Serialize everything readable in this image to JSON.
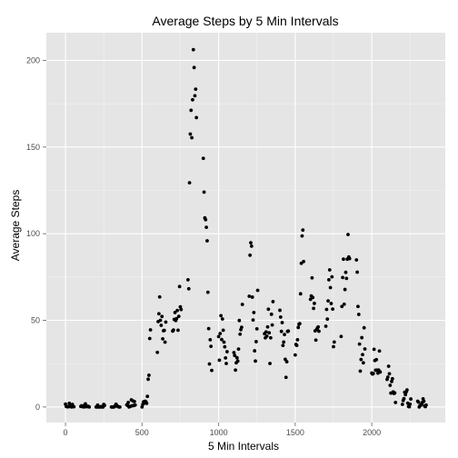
{
  "chart_data": {
    "type": "scatter",
    "title": "Average Steps by 5 Min Intervals",
    "xlabel": "5 Min Intervals",
    "ylabel": "Average Steps",
    "xlim": [
      -125,
      2480
    ],
    "ylim": [
      -9,
      216
    ],
    "xticks": [
      0,
      500,
      1000,
      1500,
      2000
    ],
    "yticks": [
      0,
      50,
      100,
      150,
      200
    ],
    "grid": true,
    "colors": {
      "panel": "#e5e5e5",
      "grid_major": "#ffffff",
      "grid_minor": "#f2f2f2",
      "point": "#000000"
    },
    "points": [
      [
        0,
        1.7
      ],
      [
        5,
        0.3
      ],
      [
        10,
        0.1
      ],
      [
        15,
        0.2
      ],
      [
        20,
        0.1
      ],
      [
        25,
        2.1
      ],
      [
        30,
        0.5
      ],
      [
        35,
        0.9
      ],
      [
        40,
        0
      ],
      [
        45,
        1.5
      ],
      [
        50,
        0.3
      ],
      [
        55,
        0.1
      ],
      [
        100,
        0.3
      ],
      [
        105,
        0.7
      ],
      [
        110,
        0.2
      ],
      [
        115,
        0.3
      ],
      [
        120,
        0
      ],
      [
        125,
        1.1
      ],
      [
        130,
        1.8
      ],
      [
        135,
        0.2
      ],
      [
        140,
        0.2
      ],
      [
        145,
        0.4
      ],
      [
        150,
        0.3
      ],
      [
        155,
        0
      ],
      [
        200,
        0
      ],
      [
        205,
        0
      ],
      [
        210,
        1.1
      ],
      [
        215,
        0
      ],
      [
        220,
        0
      ],
      [
        225,
        0.1
      ],
      [
        230,
        0
      ],
      [
        235,
        0.2
      ],
      [
        240,
        0
      ],
      [
        245,
        0
      ],
      [
        250,
        1.5
      ],
      [
        255,
        0.9
      ],
      [
        300,
        0
      ],
      [
        305,
        0
      ],
      [
        310,
        0
      ],
      [
        315,
        0
      ],
      [
        320,
        0.2
      ],
      [
        325,
        0.6
      ],
      [
        330,
        1.6
      ],
      [
        335,
        0.6
      ],
      [
        340,
        0.5
      ],
      [
        345,
        0.1
      ],
      [
        350,
        0
      ],
      [
        355,
        0
      ],
      [
        400,
        1.2
      ],
      [
        405,
        0.9
      ],
      [
        410,
        2.6
      ],
      [
        415,
        0
      ],
      [
        420,
        0.3
      ],
      [
        425,
        0.4
      ],
      [
        430,
        4.1
      ],
      [
        435,
        0.7
      ],
      [
        440,
        3.5
      ],
      [
        445,
        0.8
      ],
      [
        450,
        3.1
      ],
      [
        455,
        1.1
      ],
      [
        500,
        0
      ],
      [
        505,
        1.5
      ],
      [
        510,
        3
      ],
      [
        515,
        2.2
      ],
      [
        520,
        3.3
      ],
      [
        525,
        3
      ],
      [
        530,
        2.1
      ],
      [
        535,
        6.1
      ],
      [
        540,
        16
      ],
      [
        545,
        18.3
      ],
      [
        550,
        39.5
      ],
      [
        555,
        44.5
      ],
      [
        600,
        31.5
      ],
      [
        605,
        49.3
      ],
      [
        610,
        53.8
      ],
      [
        615,
        63.5
      ],
      [
        620,
        50
      ],
      [
        625,
        47.1
      ],
      [
        630,
        52.2
      ],
      [
        635,
        39.3
      ],
      [
        640,
        44
      ],
      [
        645,
        44.2
      ],
      [
        650,
        37.4
      ],
      [
        655,
        49
      ],
      [
        700,
        43.8
      ],
      [
        705,
        44.4
      ],
      [
        710,
        50.5
      ],
      [
        715,
        54.5
      ],
      [
        720,
        49.9
      ],
      [
        725,
        51
      ],
      [
        730,
        55.7
      ],
      [
        735,
        44.3
      ],
      [
        740,
        52.3
      ],
      [
        745,
        69.5
      ],
      [
        750,
        57.8
      ],
      [
        755,
        56.2
      ],
      [
        800,
        73.4
      ],
      [
        805,
        68.2
      ],
      [
        810,
        129.4
      ],
      [
        815,
        157.5
      ],
      [
        820,
        171.2
      ],
      [
        825,
        155.4
      ],
      [
        830,
        177.3
      ],
      [
        835,
        206.2
      ],
      [
        840,
        195.9
      ],
      [
        845,
        179.6
      ],
      [
        850,
        183.4
      ],
      [
        855,
        167
      ],
      [
        900,
        143.5
      ],
      [
        905,
        124
      ],
      [
        910,
        109.1
      ],
      [
        915,
        108.1
      ],
      [
        920,
        103.7
      ],
      [
        925,
        95.9
      ],
      [
        930,
        66.2
      ],
      [
        935,
        45.2
      ],
      [
        940,
        24.8
      ],
      [
        945,
        38.8
      ],
      [
        950,
        35
      ],
      [
        955,
        21.1
      ],
      [
        1000,
        40.6
      ],
      [
        1005,
        27
      ],
      [
        1010,
        42.4
      ],
      [
        1015,
        52.7
      ],
      [
        1020,
        38.9
      ],
      [
        1025,
        50.8
      ],
      [
        1030,
        44.3
      ],
      [
        1035,
        37.4
      ],
      [
        1040,
        34.7
      ],
      [
        1045,
        28.3
      ],
      [
        1050,
        25.1
      ],
      [
        1055,
        31.9
      ],
      [
        1100,
        31.4
      ],
      [
        1105,
        29.7
      ],
      [
        1110,
        21.3
      ],
      [
        1115,
        25.5
      ],
      [
        1120,
        28.4
      ],
      [
        1125,
        26.5
      ],
      [
        1130,
        33.4
      ],
      [
        1135,
        49.9
      ],
      [
        1140,
        42
      ],
      [
        1145,
        44.6
      ],
      [
        1150,
        46
      ],
      [
        1155,
        59.2
      ],
      [
        1200,
        63.9
      ],
      [
        1205,
        87.6
      ],
      [
        1210,
        94.8
      ],
      [
        1215,
        92.8
      ],
      [
        1220,
        63.4
      ],
      [
        1225,
        50.2
      ],
      [
        1230,
        54.5
      ],
      [
        1235,
        32.4
      ],
      [
        1240,
        26.5
      ],
      [
        1245,
        37.7
      ],
      [
        1250,
        45.1
      ],
      [
        1255,
        67.3
      ],
      [
        1300,
        42.3
      ],
      [
        1305,
        39.9
      ],
      [
        1310,
        43.3
      ],
      [
        1315,
        40.9
      ],
      [
        1320,
        46.2
      ],
      [
        1325,
        56.4
      ],
      [
        1330,
        42.8
      ],
      [
        1335,
        25.1
      ],
      [
        1340,
        39.9
      ],
      [
        1345,
        53.5
      ],
      [
        1350,
        47.3
      ],
      [
        1355,
        60.8
      ],
      [
        1400,
        55.8
      ],
      [
        1405,
        51.9
      ],
      [
        1410,
        43.6
      ],
      [
        1415,
        48.7
      ],
      [
        1420,
        35.5
      ],
      [
        1425,
        37.5
      ],
      [
        1430,
        41.8
      ],
      [
        1435,
        27.5
      ],
      [
        1440,
        17.1
      ],
      [
        1445,
        26.1
      ],
      [
        1450,
        43.6
      ],
      [
        1455,
        43.8
      ],
      [
        1500,
        30
      ],
      [
        1505,
        36.1
      ],
      [
        1510,
        35.5
      ],
      [
        1515,
        38.8
      ],
      [
        1520,
        45.9
      ],
      [
        1525,
        47.8
      ],
      [
        1530,
        48.1
      ],
      [
        1535,
        65.3
      ],
      [
        1540,
        82.9
      ],
      [
        1545,
        98.7
      ],
      [
        1550,
        102.1
      ],
      [
        1555,
        83.96
      ],
      [
        1600,
        62.1
      ],
      [
        1605,
        64.1
      ],
      [
        1610,
        74.5
      ],
      [
        1615,
        63.2
      ],
      [
        1620,
        56.9
      ],
      [
        1625,
        59.8
      ],
      [
        1630,
        43.9
      ],
      [
        1635,
        38.6
      ],
      [
        1640,
        44.7
      ],
      [
        1645,
        45.5
      ],
      [
        1650,
        46.2
      ],
      [
        1655,
        43.7
      ],
      [
        1700,
        46.6
      ],
      [
        1705,
        56.3
      ],
      [
        1710,
        50.7
      ],
      [
        1715,
        61.2
      ],
      [
        1720,
        73.4
      ],
      [
        1725,
        79.1
      ],
      [
        1730,
        68.9
      ],
      [
        1735,
        59.7
      ],
      [
        1740,
        75.1
      ],
      [
        1745,
        56.5
      ],
      [
        1750,
        34.8
      ],
      [
        1755,
        37.5
      ],
      [
        1800,
        40.7
      ],
      [
        1805,
        58
      ],
      [
        1810,
        74.7
      ],
      [
        1815,
        85.3
      ],
      [
        1820,
        59.3
      ],
      [
        1825,
        67.8
      ],
      [
        1830,
        77.7
      ],
      [
        1835,
        74.2
      ],
      [
        1840,
        85.3
      ],
      [
        1845,
        99.5
      ],
      [
        1850,
        86.6
      ],
      [
        1855,
        85.6
      ],
      [
        1900,
        84.9
      ],
      [
        1905,
        77.8
      ],
      [
        1910,
        58
      ],
      [
        1915,
        53.4
      ],
      [
        1920,
        36.3
      ],
      [
        1925,
        20.7
      ],
      [
        1930,
        27.4
      ],
      [
        1935,
        40
      ],
      [
        1940,
        30.2
      ],
      [
        1945,
        25.5
      ],
      [
        1950,
        45.7
      ],
      [
        1955,
        33.5
      ],
      [
        2000,
        19.6
      ],
      [
        2005,
        19
      ],
      [
        2010,
        19.3
      ],
      [
        2015,
        33.3
      ],
      [
        2020,
        26.8
      ],
      [
        2025,
        21.2
      ],
      [
        2030,
        27.3
      ],
      [
        2035,
        21.3
      ],
      [
        2040,
        19.5
      ],
      [
        2045,
        21.3
      ],
      [
        2050,
        32.3
      ],
      [
        2055,
        20.2
      ],
      [
        2100,
        15.9
      ],
      [
        2105,
        17.2
      ],
      [
        2110,
        23.5
      ],
      [
        2115,
        19.2
      ],
      [
        2120,
        12.5
      ],
      [
        2125,
        8
      ],
      [
        2130,
        14.7
      ],
      [
        2135,
        16.3
      ],
      [
        2140,
        8.7
      ],
      [
        2145,
        7.8
      ],
      [
        2150,
        8.1
      ],
      [
        2155,
        2.6
      ],
      [
        2200,
        1.5
      ],
      [
        2205,
        3.7
      ],
      [
        2210,
        4.8
      ],
      [
        2215,
        8.5
      ],
      [
        2220,
        7.1
      ],
      [
        2225,
        8.7
      ],
      [
        2230,
        9.8
      ],
      [
        2235,
        2.2
      ],
      [
        2240,
        0.3
      ],
      [
        2245,
        0.1
      ],
      [
        2250,
        1.6
      ],
      [
        2255,
        4.6
      ],
      [
        2300,
        3.3
      ],
      [
        2305,
        2.8
      ],
      [
        2310,
        0
      ],
      [
        2315,
        0.8
      ],
      [
        2320,
        1
      ],
      [
        2325,
        1.6
      ],
      [
        2330,
        2.6
      ],
      [
        2335,
        4.7
      ],
      [
        2340,
        3.3
      ],
      [
        2345,
        0.6
      ],
      [
        2350,
        0.2
      ],
      [
        2355,
        1.1
      ]
    ]
  }
}
